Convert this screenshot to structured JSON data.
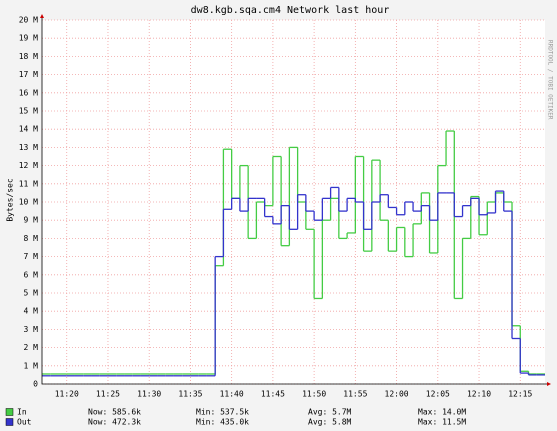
{
  "chart_data": {
    "type": "line",
    "title": "dw8.kgb.sqa.cm4 Network last hour",
    "y_label": "Bytes/sec",
    "watermark": "RRDTOOL / TOBI OETIKER",
    "step": true,
    "grid": true,
    "x": [
      "11:17",
      "11:18",
      "11:19",
      "11:20",
      "11:21",
      "11:22",
      "11:23",
      "11:24",
      "11:25",
      "11:26",
      "11:27",
      "11:28",
      "11:29",
      "11:30",
      "11:31",
      "11:32",
      "11:33",
      "11:34",
      "11:35",
      "11:36",
      "11:37",
      "11:38",
      "11:39",
      "11:40",
      "11:41",
      "11:42",
      "11:43",
      "11:44",
      "11:45",
      "11:46",
      "11:47",
      "11:48",
      "11:49",
      "11:50",
      "11:51",
      "11:52",
      "11:53",
      "11:54",
      "11:55",
      "11:56",
      "11:57",
      "11:58",
      "11:59",
      "12:00",
      "12:01",
      "12:02",
      "12:03",
      "12:04",
      "12:05",
      "12:06",
      "12:07",
      "12:08",
      "12:09",
      "12:10",
      "12:11",
      "12:12",
      "12:13",
      "12:14",
      "12:15",
      "12:16",
      "12:17"
    ],
    "xlim": [
      "11:17",
      "12:18"
    ],
    "xticks": [
      "11:20",
      "11:25",
      "11:30",
      "11:35",
      "11:40",
      "11:45",
      "11:50",
      "11:55",
      "12:00",
      "12:05",
      "12:10",
      "12:15"
    ],
    "ylim": [
      0,
      20
    ],
    "yticks": [
      {
        "value": 0,
        "label": "0"
      },
      {
        "value": 1,
        "label": "1 M"
      },
      {
        "value": 2,
        "label": "2 M"
      },
      {
        "value": 3,
        "label": "3 M"
      },
      {
        "value": 4,
        "label": "4 M"
      },
      {
        "value": 5,
        "label": "5 M"
      },
      {
        "value": 6,
        "label": "6 M"
      },
      {
        "value": 7,
        "label": "7 M"
      },
      {
        "value": 8,
        "label": "8 M"
      },
      {
        "value": 9,
        "label": "9 M"
      },
      {
        "value": 10,
        "label": "10 M"
      },
      {
        "value": 11,
        "label": "11 M"
      },
      {
        "value": 12,
        "label": "12 M"
      },
      {
        "value": 13,
        "label": "13 M"
      },
      {
        "value": 14,
        "label": "14 M"
      },
      {
        "value": 15,
        "label": "15 M"
      },
      {
        "value": 16,
        "label": "16 M"
      },
      {
        "value": 17,
        "label": "17 M"
      },
      {
        "value": 18,
        "label": "18 M"
      },
      {
        "value": 19,
        "label": "19 M"
      },
      {
        "value": 20,
        "label": "20 M"
      }
    ],
    "series": [
      {
        "name": "In",
        "color": "#44cc44",
        "stats": [
          "Now: 585.6k",
          "Min: 537.5k",
          "Avg: 5.7M",
          "Max: 14.0M"
        ],
        "values": [
          0.55,
          0.55,
          0.55,
          0.55,
          0.55,
          0.55,
          0.55,
          0.55,
          0.55,
          0.55,
          0.55,
          0.55,
          0.55,
          0.55,
          0.55,
          0.55,
          0.55,
          0.55,
          0.55,
          0.55,
          0.55,
          6.5,
          12.9,
          10.2,
          12.0,
          8.0,
          10.0,
          9.8,
          12.5,
          7.6,
          13.0,
          10.0,
          8.5,
          4.7,
          9.0,
          10.2,
          8.0,
          8.3,
          12.5,
          7.3,
          12.3,
          9.0,
          7.3,
          8.6,
          7.0,
          8.8,
          10.5,
          7.2,
          12.0,
          13.9,
          4.7,
          8.0,
          10.3,
          8.2,
          10.0,
          10.5,
          10.0,
          3.2,
          0.7,
          0.55,
          0.55
        ]
      },
      {
        "name": "Out",
        "color": "#3333cc",
        "stats": [
          "Now: 472.3k",
          "Min: 435.0k",
          "Avg: 5.8M",
          "Max: 11.5M"
        ],
        "values": [
          0.45,
          0.45,
          0.45,
          0.45,
          0.45,
          0.45,
          0.45,
          0.45,
          0.45,
          0.45,
          0.45,
          0.45,
          0.45,
          0.45,
          0.45,
          0.45,
          0.45,
          0.45,
          0.45,
          0.45,
          0.45,
          7.0,
          9.6,
          10.2,
          9.5,
          10.2,
          10.2,
          9.2,
          8.8,
          9.8,
          8.5,
          10.4,
          9.5,
          9.0,
          10.2,
          10.8,
          9.5,
          10.2,
          10.0,
          8.5,
          10.0,
          10.4,
          9.7,
          9.3,
          10.0,
          9.5,
          9.8,
          9.0,
          10.5,
          10.5,
          9.2,
          9.8,
          10.2,
          9.3,
          9.4,
          10.6,
          9.5,
          2.5,
          0.6,
          0.5,
          0.5
        ]
      }
    ]
  }
}
